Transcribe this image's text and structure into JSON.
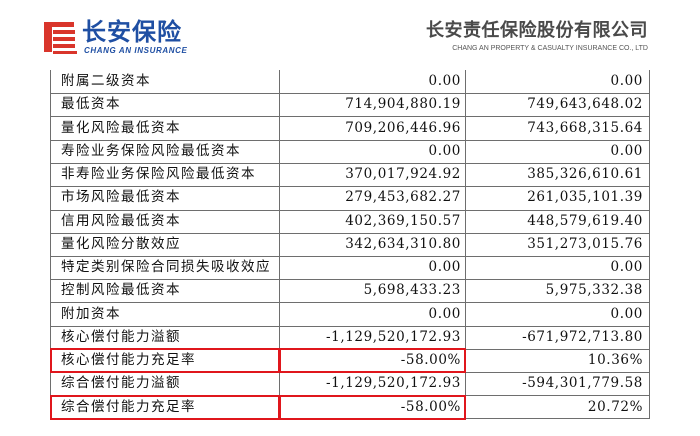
{
  "header": {
    "logo_text": "长安保险",
    "logo_sub": "CHANG AN INSURANCE",
    "company_name": "长安责任保险股份有限公司",
    "company_en": "CHANG AN PROPERTY & CASUALTY INSURANCE CO., LTD"
  },
  "colors": {
    "brand_blue": "#1f4fa3",
    "logo_red": "#d9352b",
    "highlight_red": "#e0161c",
    "grid_line": "#6e6e6e"
  },
  "table": {
    "rows": [
      {
        "label": "附属二级资本",
        "current": "0.00",
        "previous": "0.00"
      },
      {
        "label": "最低资本",
        "current": "714,904,880.19",
        "previous": "749,643,648.02"
      },
      {
        "label": "量化风险最低资本",
        "current": "709,206,446.96",
        "previous": "743,668,315.64"
      },
      {
        "label": "寿险业务保险风险最低资本",
        "current": "0.00",
        "previous": "0.00"
      },
      {
        "label": "非寿险业务保险风险最低资本",
        "current": "370,017,924.92",
        "previous": "385,326,610.61"
      },
      {
        "label": "市场风险最低资本",
        "current": "279,453,682.27",
        "previous": "261,035,101.39"
      },
      {
        "label": "信用风险最低资本",
        "current": "402,369,150.57",
        "previous": "448,579,619.40"
      },
      {
        "label": "量化风险分散效应",
        "current": "342,634,310.80",
        "previous": "351,273,015.76"
      },
      {
        "label": "特定类别保险合同损失吸收效应",
        "current": "0.00",
        "previous": "0.00"
      },
      {
        "label": "控制风险最低资本",
        "current": "5,698,433.23",
        "previous": "5,975,332.38"
      },
      {
        "label": "附加资本",
        "current": "0.00",
        "previous": "0.00"
      },
      {
        "label": "核心偿付能力溢额",
        "current": "-1,129,520,172.93",
        "previous": "-671,972,713.80"
      },
      {
        "label": "核心偿付能力充足率",
        "current": "-58.00%",
        "previous": "10.36%"
      },
      {
        "label": "综合偿付能力溢额",
        "current": "-1,129,520,172.93",
        "previous": "-594,301,779.58"
      },
      {
        "label": "综合偿付能力充足率",
        "current": "-58.00%",
        "previous": "20.72%"
      }
    ]
  }
}
